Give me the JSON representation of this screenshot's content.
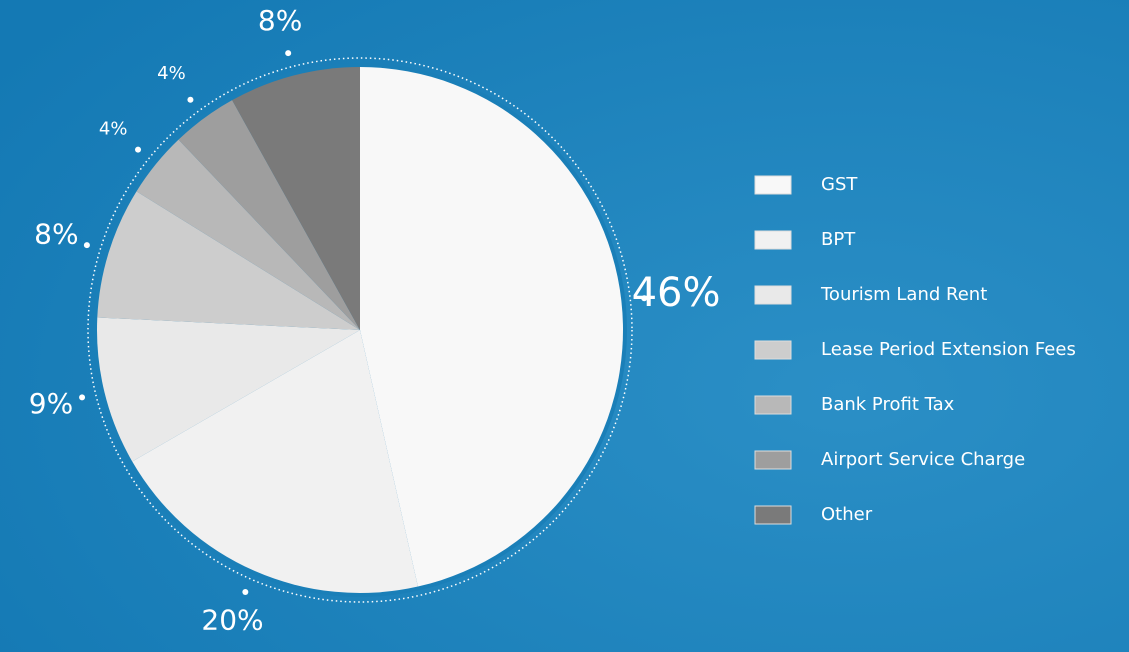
{
  "chart_data": {
    "type": "pie",
    "categories": [
      "GST",
      "BPT",
      "Tourism Land Rent",
      "Lease Period Extension Fees",
      "Bank Profit Tax",
      "Airport Service Charge",
      "Other"
    ],
    "values": [
      46,
      20,
      9,
      8,
      4,
      4,
      8
    ],
    "value_labels": [
      "46%",
      "20%",
      "9%",
      "8%",
      "4%",
      "4%",
      "8%"
    ],
    "colors": [
      "#f8f8f8",
      "#f1f1f1",
      "#e9e9e9",
      "#cdcdcd",
      "#b8b8b8",
      "#9e9e9e",
      "#7a7a7a"
    ],
    "legend": "right"
  }
}
